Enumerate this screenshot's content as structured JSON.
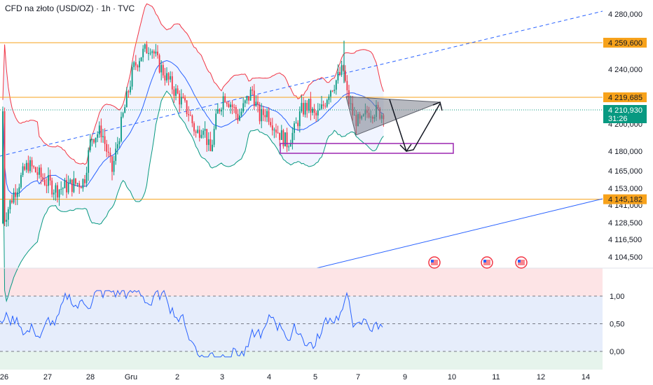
{
  "header": {
    "title": "CFD na złoto (USD/OZ) · 1h · TVC"
  },
  "colors": {
    "up": "#089981",
    "down": "#f23645",
    "bb_upper": "#f23645",
    "bb_lower": "#089981",
    "bb_mid": "#2962ff",
    "hline": "#f7a21b",
    "box": "#9c27b0",
    "trend": "#2962ff",
    "price_tag": "#089981",
    "osc_line": "#2962ff"
  },
  "chart_data": [
    {
      "type": "candlestick",
      "title": "CFD na złoto (USD/OZ) · 1h · TVC",
      "x_ticks": [
        "26",
        "27",
        "28",
        "Gru",
        "2",
        "3",
        "4",
        "5",
        "7",
        "9",
        "10",
        "11",
        "12",
        "14"
      ],
      "y_ticks": [
        "4 280,000",
        "4 240,000",
        "4 200,000",
        "4 180,000",
        "4 165,000",
        "4 153,000",
        "4 128,500",
        "4 116,500",
        "4 104,500"
      ],
      "price_levels": [
        {
          "label": "4 259,600",
          "value": 4259.6
        },
        {
          "label": "4 219,685",
          "value": 4219.685
        },
        {
          "label": "4 145,182",
          "value": 4145.182
        }
      ],
      "current_price": {
        "label": "4 210,930",
        "countdown": "31:26",
        "value": 4210.93
      },
      "hidden_tick": "4 141,000",
      "grid": false,
      "indicators": [
        "Bollinger Bands"
      ]
    },
    {
      "type": "line",
      "y_ticks": [
        "1,00",
        "0,50",
        "0,00"
      ],
      "levels": [
        1.0,
        0.5,
        0.0
      ],
      "grid": false
    }
  ]
}
